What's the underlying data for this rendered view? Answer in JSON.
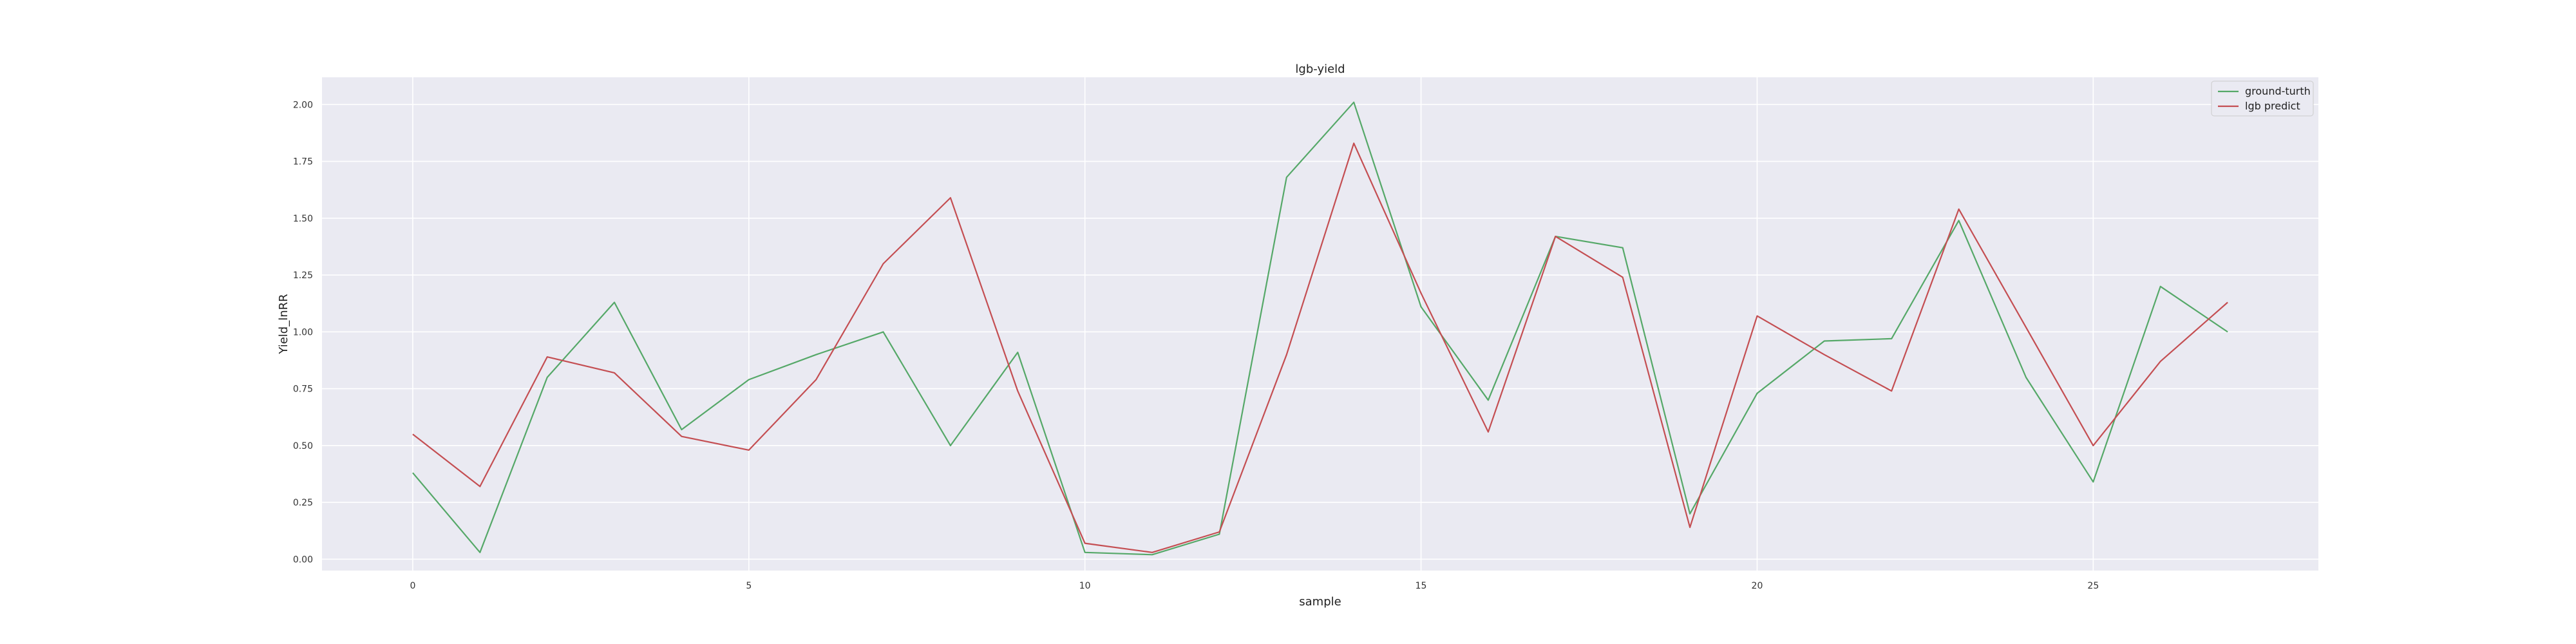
{
  "chart_data": {
    "type": "line",
    "title": "lgb-yield",
    "xlabel": "sample",
    "ylabel": "Yield_lnRR",
    "xlim": [
      -1.35,
      28.35
    ],
    "ylim": [
      -0.05,
      2.12
    ],
    "x_ticks": [
      0,
      5,
      10,
      15,
      20,
      25
    ],
    "y_ticks": [
      0.0,
      0.25,
      0.5,
      0.75,
      1.0,
      1.25,
      1.5,
      1.75,
      2.0
    ],
    "y_tick_labels": [
      "0.00",
      "0.25",
      "0.50",
      "0.75",
      "1.00",
      "1.25",
      "1.50",
      "1.75",
      "2.00"
    ],
    "grid": true,
    "background_color": "#eaeaf2",
    "legend_position": "top-right",
    "x": [
      0,
      1,
      2,
      3,
      4,
      5,
      6,
      7,
      8,
      9,
      10,
      11,
      12,
      13,
      14,
      15,
      16,
      17,
      18,
      19,
      20,
      21,
      22,
      23,
      24,
      25,
      26,
      27
    ],
    "series": [
      {
        "name": "ground-turth",
        "color": "#55a868",
        "values": [
          0.38,
          0.03,
          0.8,
          1.13,
          0.57,
          0.79,
          0.9,
          1.0,
          0.5,
          0.91,
          0.03,
          0.02,
          0.11,
          1.68,
          2.01,
          1.11,
          0.7,
          1.42,
          1.37,
          0.2,
          0.73,
          0.96,
          0.97,
          1.49,
          0.8,
          0.34,
          1.2,
          1.0
        ]
      },
      {
        "name": "lgb predict",
        "color": "#c44e52",
        "values": [
          0.55,
          0.32,
          0.89,
          0.82,
          0.54,
          0.48,
          0.79,
          1.3,
          1.59,
          0.74,
          0.07,
          0.03,
          0.12,
          0.9,
          1.83,
          1.17,
          0.56,
          1.42,
          1.24,
          0.14,
          1.07,
          0.9,
          0.74,
          1.54,
          1.02,
          0.5,
          0.87,
          1.13
        ]
      }
    ]
  }
}
